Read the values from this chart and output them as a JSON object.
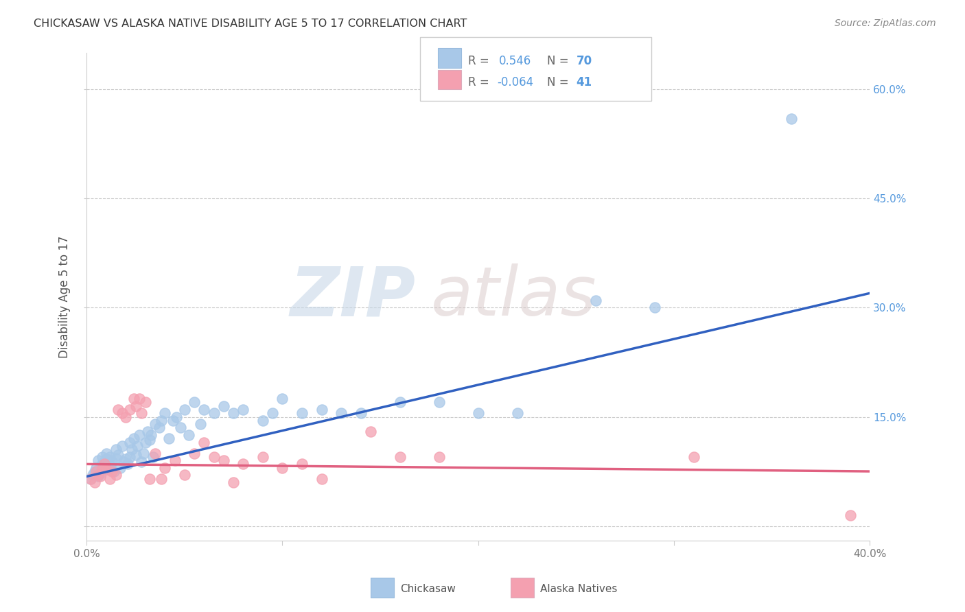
{
  "title": "CHICKASAW VS ALASKA NATIVE DISABILITY AGE 5 TO 17 CORRELATION CHART",
  "source": "Source: ZipAtlas.com",
  "ylabel": "Disability Age 5 to 17",
  "xlim": [
    0.0,
    0.4
  ],
  "ylim": [
    -0.02,
    0.65
  ],
  "chickasaw_color": "#a8c8e8",
  "alaska_color": "#f4a0b0",
  "chickasaw_line_color": "#3060c0",
  "alaska_line_color": "#e06080",
  "R_chickasaw": 0.546,
  "N_chickasaw": 70,
  "R_alaska": -0.064,
  "N_alaska": 41,
  "chickasaw_x": [
    0.002,
    0.003,
    0.004,
    0.005,
    0.006,
    0.006,
    0.007,
    0.008,
    0.008,
    0.009,
    0.01,
    0.01,
    0.011,
    0.012,
    0.012,
    0.013,
    0.014,
    0.015,
    0.015,
    0.016,
    0.017,
    0.018,
    0.019,
    0.02,
    0.021,
    0.022,
    0.022,
    0.023,
    0.024,
    0.025,
    0.026,
    0.027,
    0.028,
    0.029,
    0.03,
    0.031,
    0.032,
    0.033,
    0.034,
    0.035,
    0.037,
    0.038,
    0.04,
    0.042,
    0.044,
    0.046,
    0.048,
    0.05,
    0.052,
    0.055,
    0.058,
    0.06,
    0.065,
    0.07,
    0.075,
    0.08,
    0.09,
    0.095,
    0.1,
    0.11,
    0.12,
    0.13,
    0.14,
    0.16,
    0.18,
    0.2,
    0.22,
    0.26,
    0.29,
    0.36
  ],
  "chickasaw_y": [
    0.065,
    0.07,
    0.075,
    0.08,
    0.068,
    0.09,
    0.072,
    0.085,
    0.095,
    0.088,
    0.092,
    0.1,
    0.078,
    0.083,
    0.095,
    0.088,
    0.075,
    0.093,
    0.105,
    0.098,
    0.08,
    0.11,
    0.088,
    0.092,
    0.085,
    0.095,
    0.115,
    0.105,
    0.12,
    0.098,
    0.11,
    0.125,
    0.088,
    0.1,
    0.115,
    0.13,
    0.118,
    0.125,
    0.095,
    0.14,
    0.135,
    0.145,
    0.155,
    0.12,
    0.145,
    0.15,
    0.135,
    0.16,
    0.125,
    0.17,
    0.14,
    0.16,
    0.155,
    0.165,
    0.155,
    0.16,
    0.145,
    0.155,
    0.175,
    0.155,
    0.16,
    0.155,
    0.155,
    0.17,
    0.17,
    0.155,
    0.155,
    0.31,
    0.3,
    0.56
  ],
  "alaska_x": [
    0.002,
    0.004,
    0.005,
    0.006,
    0.007,
    0.008,
    0.009,
    0.01,
    0.012,
    0.013,
    0.015,
    0.016,
    0.018,
    0.02,
    0.022,
    0.024,
    0.025,
    0.027,
    0.028,
    0.03,
    0.032,
    0.035,
    0.038,
    0.04,
    0.045,
    0.05,
    0.055,
    0.06,
    0.065,
    0.07,
    0.075,
    0.08,
    0.09,
    0.1,
    0.11,
    0.12,
    0.145,
    0.16,
    0.18,
    0.31,
    0.39
  ],
  "alaska_y": [
    0.065,
    0.06,
    0.075,
    0.07,
    0.068,
    0.08,
    0.085,
    0.078,
    0.065,
    0.075,
    0.07,
    0.16,
    0.155,
    0.15,
    0.16,
    0.175,
    0.165,
    0.175,
    0.155,
    0.17,
    0.065,
    0.1,
    0.065,
    0.08,
    0.09,
    0.07,
    0.1,
    0.115,
    0.095,
    0.09,
    0.06,
    0.085,
    0.095,
    0.08,
    0.085,
    0.065,
    0.13,
    0.095,
    0.095,
    0.095,
    0.015
  ],
  "watermark_zip": "ZIP",
  "watermark_atlas": "atlas",
  "background_color": "#ffffff",
  "grid_color": "#cccccc"
}
